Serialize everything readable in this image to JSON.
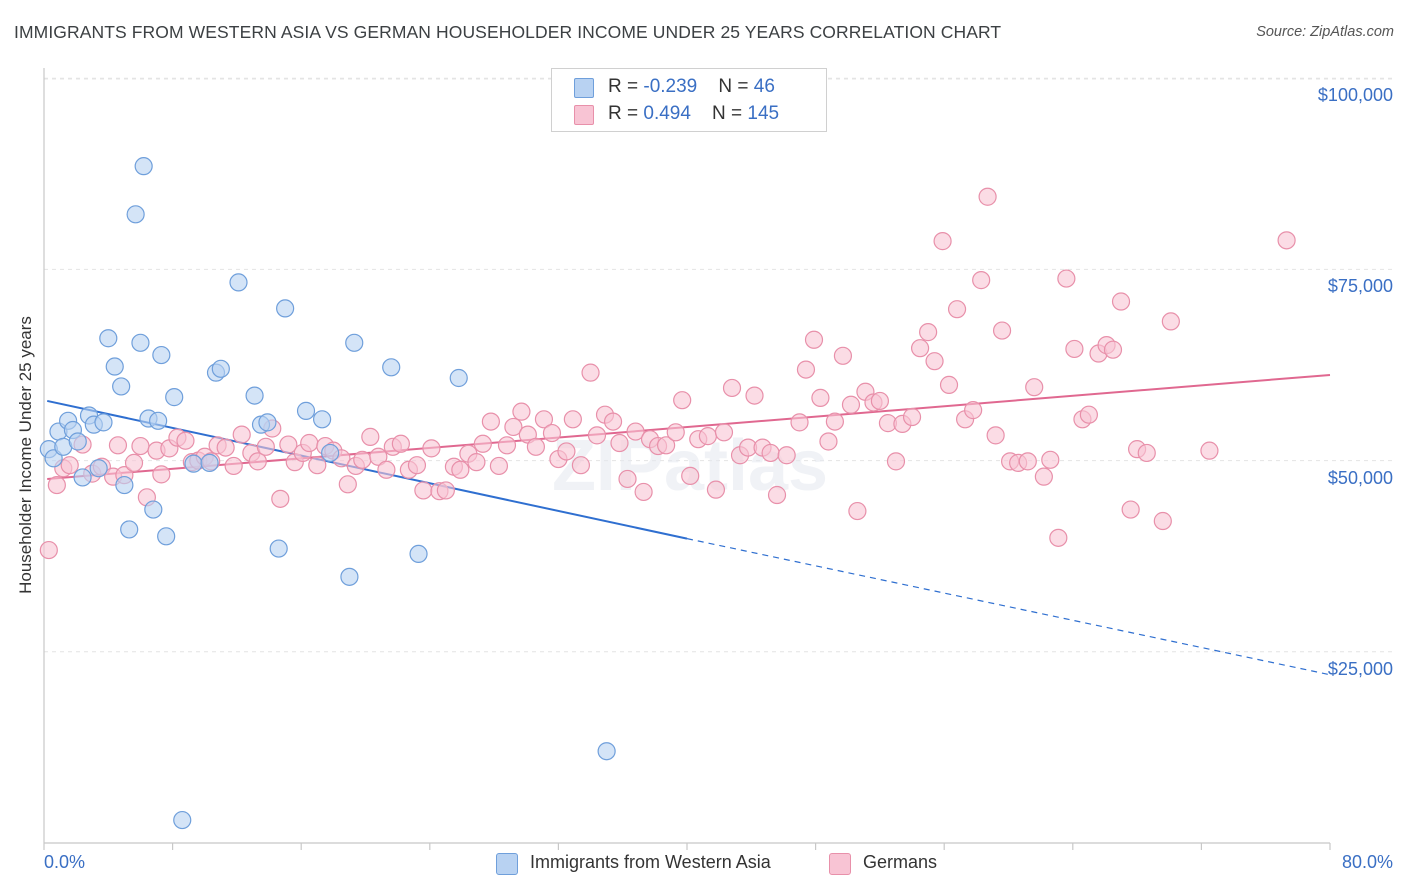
{
  "header": {
    "title": "IMMIGRANTS FROM WESTERN ASIA VS GERMAN HOUSEHOLDER INCOME UNDER 25 YEARS CORRELATION CHART",
    "source": "Source: ZipAtlas.com"
  },
  "watermark": "ZIPatlas",
  "colors": {
    "blue_fill": "#b8d2f2",
    "blue_stroke": "#6f9fdb",
    "blue_line": "#2f6fd0",
    "pink_fill": "#f8c4d4",
    "pink_stroke": "#e890aa",
    "pink_line": "#e06890",
    "value_text": "#3a6fc4"
  },
  "legend": {
    "rows": [
      {
        "r_label": "R = ",
        "r_value": "-0.239",
        "n_label": "N = ",
        "n_value": " 46"
      },
      {
        "r_label": "R = ",
        "r_value": " 0.494",
        "n_label": "N = ",
        "n_value": "145"
      }
    ]
  },
  "bottom_legend": {
    "series1": "Immigrants from Western Asia",
    "series2": "Germans"
  },
  "axes": {
    "y_label": "Householder Income Under 25 years",
    "x_min_label": "0.0%",
    "x_max_label": "80.0%",
    "y_ticks": [
      "$100,000",
      "$75,000",
      "$50,000",
      "$25,000"
    ]
  },
  "chart_data": {
    "type": "scatter",
    "xlim": [
      0,
      80
    ],
    "ylim": [
      0,
      103000
    ],
    "y_tick_values": [
      100000,
      75000,
      50000,
      25000
    ],
    "grid": "horizontal dashed",
    "legend_placement": "top-center",
    "series": [
      {
        "name": "Immigrants from Western Asia",
        "R": -0.239,
        "N": 46,
        "trend": {
          "x0": 0.2,
          "y0": 57800,
          "x_solid_end": 40,
          "y_solid_end": 39800,
          "x_end": 80,
          "y_end": 22000
        },
        "points": [
          [
            0.3,
            51500
          ],
          [
            0.6,
            50300
          ],
          [
            0.9,
            53800
          ],
          [
            1.2,
            51800
          ],
          [
            1.5,
            55200
          ],
          [
            1.8,
            54000
          ],
          [
            2.1,
            52500
          ],
          [
            2.4,
            47800
          ],
          [
            2.8,
            55900
          ],
          [
            3.1,
            54700
          ],
          [
            3.4,
            49000
          ],
          [
            3.7,
            55000
          ],
          [
            4.0,
            66000
          ],
          [
            4.4,
            62300
          ],
          [
            4.8,
            59700
          ],
          [
            5.0,
            46800
          ],
          [
            5.3,
            41000
          ],
          [
            5.7,
            82200
          ],
          [
            6.0,
            65400
          ],
          [
            6.2,
            88500
          ],
          [
            6.5,
            55500
          ],
          [
            6.8,
            43600
          ],
          [
            7.1,
            55200
          ],
          [
            7.3,
            63800
          ],
          [
            7.6,
            40100
          ],
          [
            8.1,
            58300
          ],
          [
            8.6,
            3000
          ],
          [
            9.3,
            49600
          ],
          [
            10.3,
            49700
          ],
          [
            10.7,
            61500
          ],
          [
            11.0,
            62000
          ],
          [
            12.1,
            73300
          ],
          [
            13.1,
            58500
          ],
          [
            13.5,
            54700
          ],
          [
            13.9,
            55000
          ],
          [
            14.6,
            38500
          ],
          [
            15.0,
            69900
          ],
          [
            16.3,
            56500
          ],
          [
            17.3,
            55400
          ],
          [
            17.8,
            51000
          ],
          [
            19.0,
            34800
          ],
          [
            19.3,
            65400
          ],
          [
            21.6,
            62200
          ],
          [
            23.3,
            37800
          ],
          [
            25.8,
            60800
          ],
          [
            35.0,
            12000
          ]
        ]
      },
      {
        "name": "Germans",
        "R": 0.494,
        "N": 145,
        "trend": {
          "x0": 0.2,
          "y0": 47600,
          "x_end": 80,
          "y_end": 61200
        },
        "points": [
          [
            0.3,
            38300
          ],
          [
            0.8,
            46800
          ],
          [
            1.2,
            49000
          ],
          [
            1.6,
            49400
          ],
          [
            2.4,
            52100
          ],
          [
            3.0,
            48300
          ],
          [
            3.6,
            49200
          ],
          [
            4.3,
            47900
          ],
          [
            4.6,
            52000
          ],
          [
            5.0,
            48100
          ],
          [
            5.6,
            49700
          ],
          [
            6.0,
            51900
          ],
          [
            6.4,
            45200
          ],
          [
            7.0,
            51300
          ],
          [
            7.3,
            48200
          ],
          [
            7.8,
            51600
          ],
          [
            8.3,
            53000
          ],
          [
            8.8,
            52600
          ],
          [
            9.2,
            49800
          ],
          [
            9.6,
            50000
          ],
          [
            10.0,
            50500
          ],
          [
            10.4,
            49900
          ],
          [
            10.8,
            52000
          ],
          [
            11.3,
            51700
          ],
          [
            11.8,
            49300
          ],
          [
            12.3,
            53400
          ],
          [
            12.9,
            51000
          ],
          [
            13.3,
            49900
          ],
          [
            13.8,
            51800
          ],
          [
            14.2,
            54200
          ],
          [
            14.7,
            45000
          ],
          [
            15.2,
            52100
          ],
          [
            15.6,
            49800
          ],
          [
            16.1,
            51000
          ],
          [
            16.5,
            52300
          ],
          [
            17.0,
            49400
          ],
          [
            17.5,
            51900
          ],
          [
            18.0,
            51300
          ],
          [
            18.5,
            50300
          ],
          [
            18.9,
            46900
          ],
          [
            19.4,
            49300
          ],
          [
            19.8,
            50100
          ],
          [
            20.3,
            53100
          ],
          [
            20.8,
            50500
          ],
          [
            21.3,
            48800
          ],
          [
            21.7,
            51800
          ],
          [
            22.2,
            52200
          ],
          [
            22.7,
            48800
          ],
          [
            23.2,
            49400
          ],
          [
            23.6,
            46100
          ],
          [
            24.1,
            51600
          ],
          [
            24.6,
            46000
          ],
          [
            25.0,
            46100
          ],
          [
            25.5,
            49200
          ],
          [
            25.9,
            48800
          ],
          [
            26.4,
            50900
          ],
          [
            26.9,
            49800
          ],
          [
            27.3,
            52200
          ],
          [
            27.8,
            55100
          ],
          [
            28.3,
            49300
          ],
          [
            28.8,
            52000
          ],
          [
            29.2,
            54400
          ],
          [
            29.7,
            56400
          ],
          [
            30.1,
            53400
          ],
          [
            30.6,
            51800
          ],
          [
            31.1,
            55400
          ],
          [
            31.6,
            53600
          ],
          [
            32.0,
            50200
          ],
          [
            32.5,
            51200
          ],
          [
            32.9,
            55400
          ],
          [
            33.4,
            49400
          ],
          [
            34.0,
            61500
          ],
          [
            34.4,
            53300
          ],
          [
            34.9,
            56000
          ],
          [
            35.4,
            55100
          ],
          [
            35.8,
            52300
          ],
          [
            36.3,
            47600
          ],
          [
            36.8,
            53800
          ],
          [
            37.3,
            45900
          ],
          [
            37.7,
            52800
          ],
          [
            38.2,
            51900
          ],
          [
            38.7,
            52000
          ],
          [
            39.3,
            53700
          ],
          [
            39.7,
            57900
          ],
          [
            40.2,
            48000
          ],
          [
            40.7,
            52800
          ],
          [
            41.3,
            53200
          ],
          [
            41.8,
            46200
          ],
          [
            42.3,
            53700
          ],
          [
            42.8,
            59500
          ],
          [
            43.3,
            50700
          ],
          [
            43.8,
            51700
          ],
          [
            44.2,
            58500
          ],
          [
            44.7,
            51700
          ],
          [
            45.2,
            51000
          ],
          [
            45.6,
            45500
          ],
          [
            46.2,
            50700
          ],
          [
            47.0,
            55000
          ],
          [
            47.4,
            61900
          ],
          [
            47.9,
            65800
          ],
          [
            48.3,
            58200
          ],
          [
            48.8,
            52500
          ],
          [
            49.2,
            55100
          ],
          [
            49.7,
            63700
          ],
          [
            50.2,
            57300
          ],
          [
            50.6,
            43400
          ],
          [
            51.1,
            59000
          ],
          [
            51.6,
            57600
          ],
          [
            52.0,
            57800
          ],
          [
            52.5,
            54900
          ],
          [
            53.0,
            49900
          ],
          [
            53.4,
            54800
          ],
          [
            54.0,
            55700
          ],
          [
            54.5,
            64700
          ],
          [
            55.0,
            66800
          ],
          [
            55.4,
            63000
          ],
          [
            55.9,
            78700
          ],
          [
            56.3,
            59900
          ],
          [
            56.8,
            69800
          ],
          [
            57.3,
            55400
          ],
          [
            57.8,
            56600
          ],
          [
            58.3,
            73600
          ],
          [
            58.7,
            84500
          ],
          [
            59.2,
            53300
          ],
          [
            59.6,
            67000
          ],
          [
            60.1,
            49900
          ],
          [
            60.6,
            49700
          ],
          [
            61.2,
            49900
          ],
          [
            61.6,
            59600
          ],
          [
            62.2,
            47900
          ],
          [
            62.6,
            50100
          ],
          [
            63.1,
            39900
          ],
          [
            63.6,
            73800
          ],
          [
            64.1,
            64600
          ],
          [
            64.6,
            55400
          ],
          [
            65.0,
            56000
          ],
          [
            65.6,
            64000
          ],
          [
            66.1,
            65100
          ],
          [
            66.5,
            64500
          ],
          [
            67.0,
            70800
          ],
          [
            67.6,
            43600
          ],
          [
            68.0,
            51500
          ],
          [
            68.6,
            51000
          ],
          [
            69.6,
            42100
          ],
          [
            70.1,
            68200
          ],
          [
            72.5,
            51300
          ],
          [
            77.3,
            78800
          ]
        ]
      }
    ]
  }
}
